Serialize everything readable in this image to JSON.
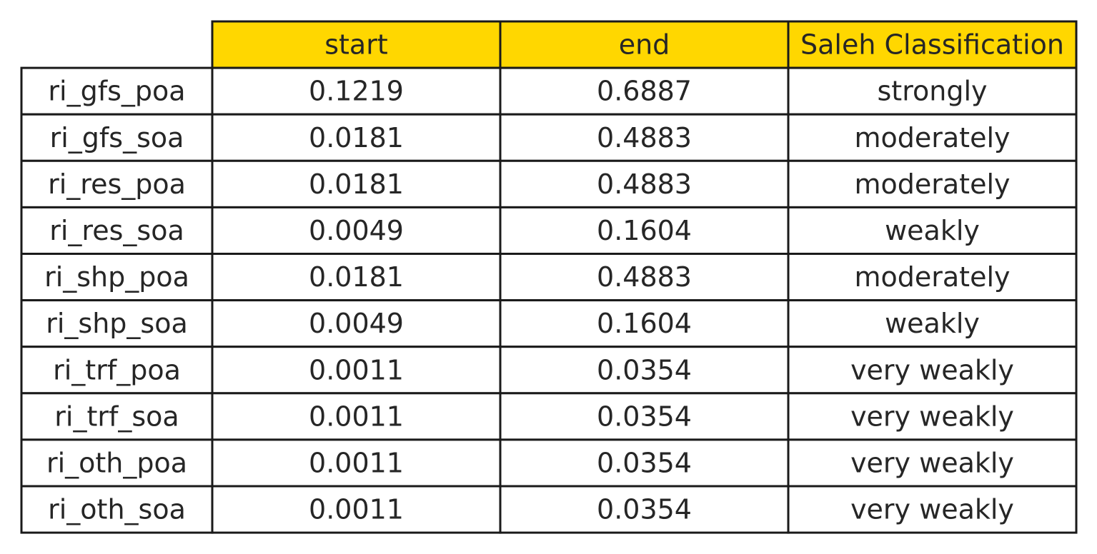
{
  "chart_data": {
    "type": "table",
    "header_color": "#FFD700",
    "columns": [
      "",
      "start",
      "end",
      "Saleh Classification"
    ],
    "rows": [
      {
        "label": "ri_gfs_poa",
        "start": "0.1219",
        "end": "0.6887",
        "classification": "strongly"
      },
      {
        "label": "ri_gfs_soa",
        "start": "0.0181",
        "end": "0.4883",
        "classification": "moderately"
      },
      {
        "label": "ri_res_poa",
        "start": "0.0181",
        "end": "0.4883",
        "classification": "moderately"
      },
      {
        "label": "ri_res_soa",
        "start": "0.0049",
        "end": "0.1604",
        "classification": "weakly"
      },
      {
        "label": "ri_shp_poa",
        "start": "0.0181",
        "end": "0.4883",
        "classification": "moderately"
      },
      {
        "label": "ri_shp_soa",
        "start": "0.0049",
        "end": "0.1604",
        "classification": "weakly"
      },
      {
        "label": "ri_trf_poa",
        "start": "0.0011",
        "end": "0.0354",
        "classification": "very weakly"
      },
      {
        "label": "ri_trf_soa",
        "start": "0.0011",
        "end": "0.0354",
        "classification": "very weakly"
      },
      {
        "label": "ri_oth_poa",
        "start": "0.0011",
        "end": "0.0354",
        "classification": "very weakly"
      },
      {
        "label": "ri_oth_soa",
        "start": "0.0011",
        "end": "0.0354",
        "classification": "very weakly"
      }
    ]
  }
}
